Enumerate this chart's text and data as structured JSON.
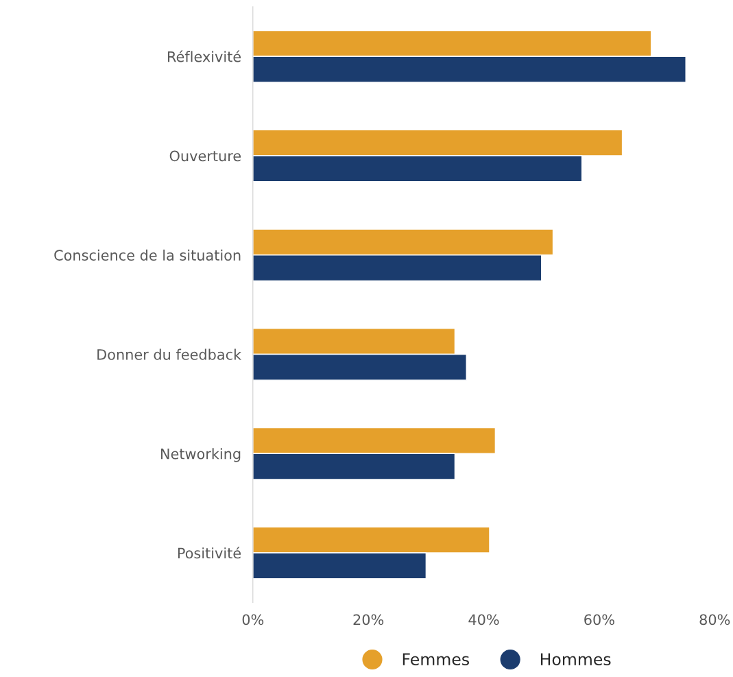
{
  "chart_data": {
    "type": "bar",
    "orientation": "horizontal",
    "categories": [
      "Réflexivité",
      "Ouverture",
      "Conscience de la situation",
      "Donner du feedback",
      "Networking",
      "Positivité"
    ],
    "series": [
      {
        "name": "Femmes",
        "color": "#e5a02b",
        "values": [
          69,
          64,
          52,
          35,
          42,
          41
        ]
      },
      {
        "name": "Hommes",
        "color": "#1b3c6e",
        "values": [
          75,
          57,
          50,
          37,
          35,
          30
        ]
      }
    ],
    "xlim": [
      0,
      80
    ],
    "xticks": [
      {
        "value": 0,
        "label": "0%"
      },
      {
        "value": 20,
        "label": "20%"
      },
      {
        "value": 40,
        "label": "40%"
      },
      {
        "value": 60,
        "label": "60%"
      },
      {
        "value": 80,
        "label": "80%"
      }
    ],
    "grid": false,
    "legend": "bottom"
  }
}
